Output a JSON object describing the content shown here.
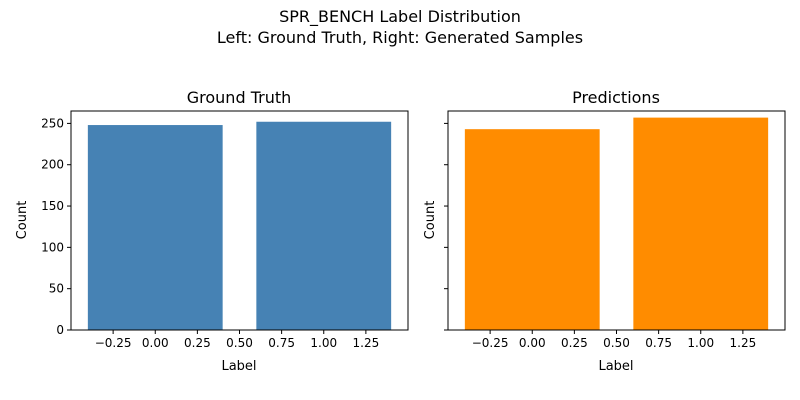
{
  "figure": {
    "suptitle_line1": "SPR_BENCH Label Distribution",
    "suptitle_line2": "Left: Ground Truth, Right: Generated Samples"
  },
  "chart_data": [
    {
      "type": "bar",
      "title": "Ground Truth",
      "xlabel": "Label",
      "ylabel": "Count",
      "x": [
        0,
        1
      ],
      "values": [
        248,
        252
      ],
      "bar_width": 0.8,
      "color": "#4682b4",
      "xlim": [
        -0.5,
        1.5
      ],
      "ylim": [
        0,
        265
      ],
      "xticks": [
        -0.25,
        0.0,
        0.25,
        0.5,
        0.75,
        1.0,
        1.25
      ],
      "xtick_labels": [
        "−0.25",
        "0.00",
        "0.25",
        "0.50",
        "0.75",
        "1.00",
        "1.25"
      ],
      "yticks": [
        0,
        50,
        100,
        150,
        200,
        250
      ],
      "ytick_labels": [
        "0",
        "50",
        "100",
        "150",
        "200",
        "250"
      ],
      "grid": false
    },
    {
      "type": "bar",
      "title": "Predictions",
      "xlabel": "Label",
      "ylabel": "Count",
      "x": [
        0,
        1
      ],
      "values": [
        243,
        257
      ],
      "bar_width": 0.8,
      "color": "#ff8c00",
      "xlim": [
        -0.5,
        1.5
      ],
      "ylim": [
        0,
        265
      ],
      "xticks": [
        -0.25,
        0.0,
        0.25,
        0.5,
        0.75,
        1.0,
        1.25
      ],
      "xtick_labels": [
        "−0.25",
        "0.00",
        "0.25",
        "0.50",
        "0.75",
        "1.00",
        "1.25"
      ],
      "yticks": [
        0,
        50,
        100,
        150,
        200,
        250
      ],
      "ytick_labels": [],
      "grid": false
    }
  ]
}
